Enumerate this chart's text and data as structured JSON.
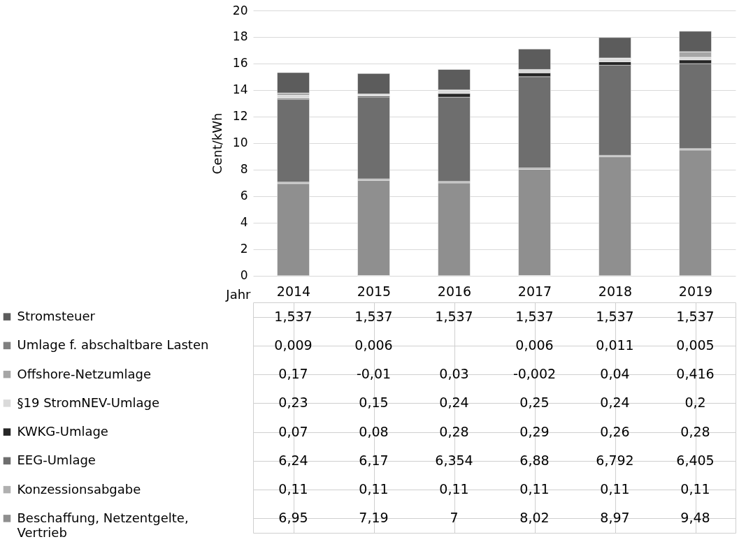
{
  "chart_data": {
    "type": "bar",
    "stacked": true,
    "xlabel": "Jahr",
    "ylabel": "Cent/kWh",
    "categories": [
      "2014",
      "2015",
      "2016",
      "2017",
      "2018",
      "2019"
    ],
    "ylim": [
      -0.01,
      20
    ],
    "yticks": [
      0,
      2,
      4,
      6,
      8,
      10,
      12,
      14,
      16,
      18,
      20
    ],
    "grid": "y",
    "legend": "bottom left",
    "series": [
      {
        "name": "Beschaffung, Netzentgelte, Vertrieb",
        "color": "#8f8f8f",
        "values": [
          6.95,
          7.19,
          7,
          8.02,
          8.97,
          9.48
        ],
        "value_labels": [
          "6,95",
          "7,19",
          "7",
          "8,02",
          "8,97",
          "9,48"
        ]
      },
      {
        "name": "Konzessionsabgabe",
        "color": "#b0b0b0",
        "values": [
          0.11,
          0.11,
          0.11,
          0.11,
          0.11,
          0.11
        ],
        "value_labels": [
          "0,11",
          "0,11",
          "0,11",
          "0,11",
          "0,11",
          "0,11"
        ]
      },
      {
        "name": "EEG-Umlage",
        "color": "#6e6e6e",
        "values": [
          6.24,
          6.17,
          6.354,
          6.88,
          6.792,
          6.405
        ],
        "value_labels": [
          "6,24",
          "6,17",
          "6,354",
          "6,88",
          "6,792",
          "6,405"
        ]
      },
      {
        "name": "KWKG-Umlage",
        "color": "#262626",
        "values": [
          0.07,
          0.08,
          0.28,
          0.29,
          0.26,
          0.28
        ],
        "value_labels": [
          "0,07",
          "0,08",
          "0,28",
          "0,29",
          "0,26",
          "0,28"
        ]
      },
      {
        "name": "§19 StromNEV-Umlage",
        "color": "#dadada",
        "values": [
          0.23,
          0.15,
          0.24,
          0.25,
          0.24,
          0.2
        ],
        "value_labels": [
          "0,23",
          "0,15",
          "0,24",
          "0,25",
          "0,24",
          "0,2"
        ]
      },
      {
        "name": "Offshore-Netzumlage",
        "color": "#a6a6a6",
        "values": [
          0.17,
          -0.01,
          0.03,
          -0.002,
          0.04,
          0.416
        ],
        "value_labels": [
          "0,17",
          "-0,01",
          "0,03",
          "-0,002",
          "0,04",
          "0,416"
        ]
      },
      {
        "name": "Umlage f. abschaltbare Lasten",
        "color": "#808080",
        "values": [
          0.009,
          0.006,
          null,
          0.006,
          0.011,
          0.005
        ],
        "value_labels": [
          "0,009",
          "0,006",
          null,
          "0,006",
          "0,011",
          "0,005"
        ]
      },
      {
        "name": "Stromsteuer",
        "color": "#5c5c5c",
        "values": [
          1.537,
          1.537,
          1.537,
          1.537,
          1.537,
          1.537
        ],
        "value_labels": [
          "1,537",
          "1,537",
          "1,537",
          "1,537",
          "1,537",
          "1,537"
        ]
      }
    ]
  }
}
